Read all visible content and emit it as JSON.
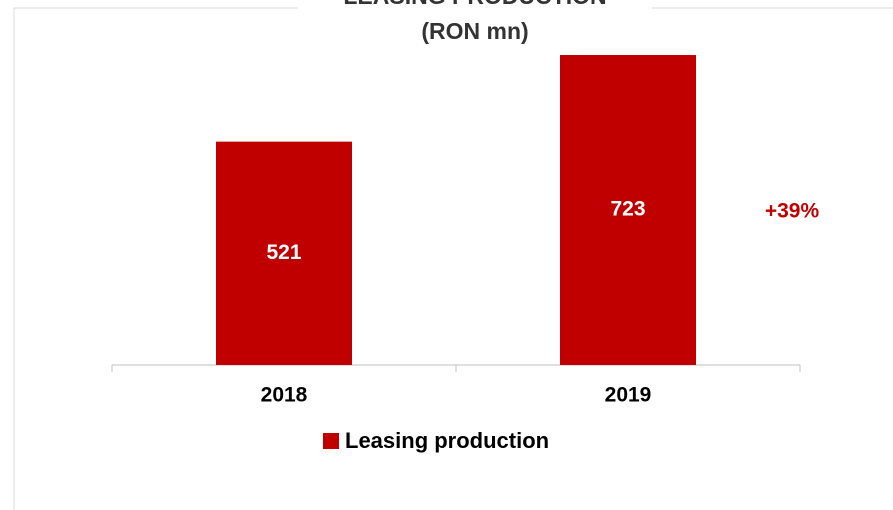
{
  "chart_data": {
    "type": "bar",
    "title": "LEASING PRODUCTION",
    "subtitle": "(RON mn)",
    "categories": [
      "2018",
      "2019"
    ],
    "series": [
      {
        "name": "Leasing production",
        "color": "#c00000",
        "values": [
          521,
          723
        ]
      }
    ],
    "ylim": [
      0,
      800
    ],
    "annotations": [
      "+39%"
    ]
  }
}
